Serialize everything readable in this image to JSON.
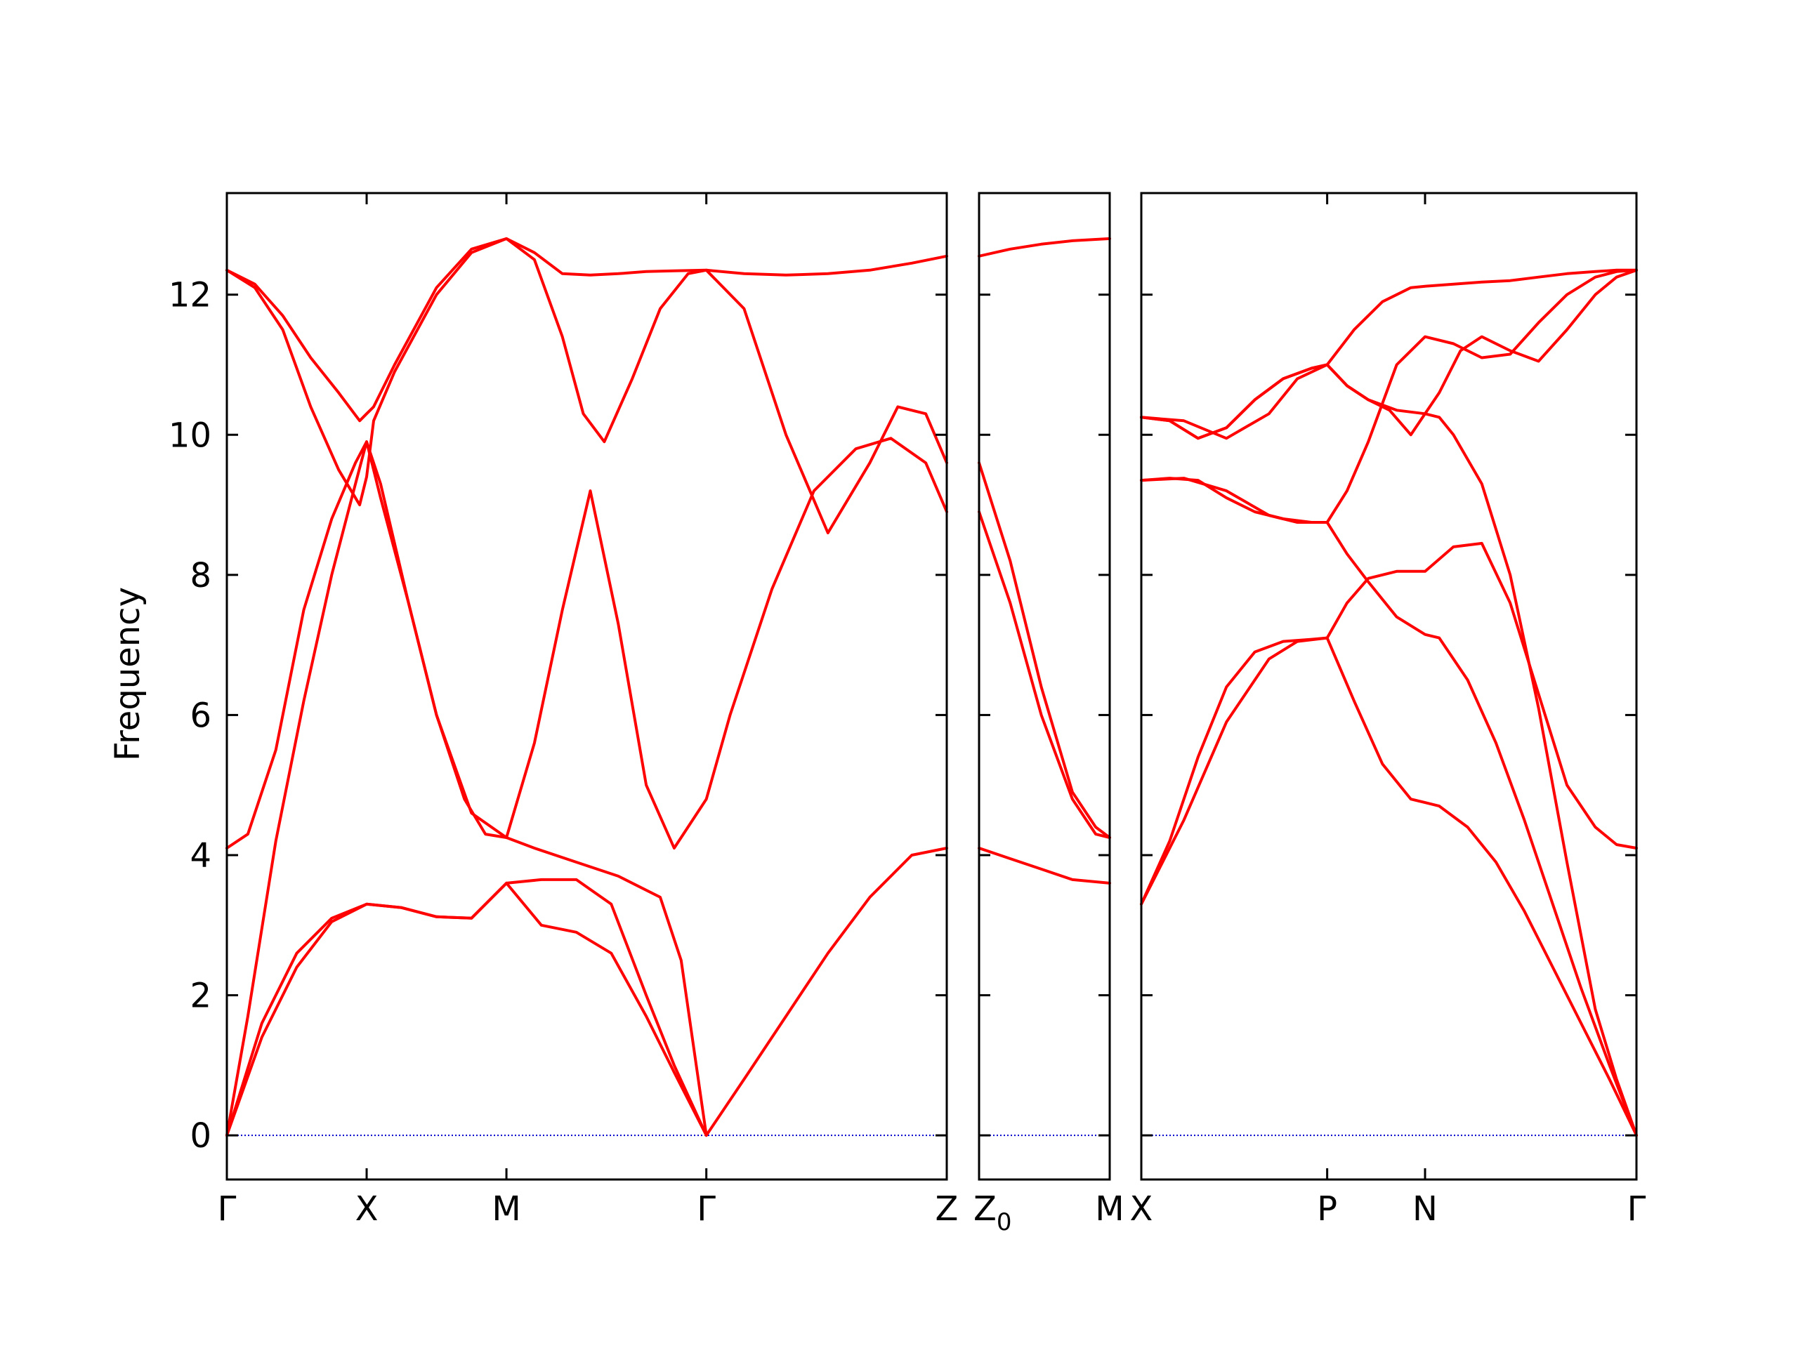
{
  "chart_data": {
    "type": "line",
    "title": "",
    "ylabel": "Frequency",
    "ylim": [
      -0.63,
      13.45
    ],
    "yticks": [
      0,
      2,
      4,
      6,
      8,
      10,
      12
    ],
    "grid": false,
    "line_color": "#ff0000",
    "zero_line_color": "#0000cc",
    "panels": [
      {
        "xlim": [
          0,
          5.15
        ],
        "ticks": [
          {
            "x": 0,
            "label": "Γ"
          },
          {
            "x": 1.0,
            "label": "X"
          },
          {
            "x": 2.0,
            "label": "M"
          },
          {
            "x": 3.43,
            "label": "Γ"
          },
          {
            "x": 5.15,
            "label": "Z"
          }
        ],
        "series": [
          {
            "x": [
              0,
              0.25,
              0.5,
              0.75,
              1.0,
              1.25,
              1.5,
              1.75,
              2.0,
              2.25,
              2.5,
              2.75,
              3.0,
              3.2,
              3.43,
              3.7,
              4.0,
              4.3,
              4.6,
              4.9,
              5.15
            ],
            "y": [
              0,
              1.4,
              2.4,
              3.05,
              3.3,
              3.25,
              3.12,
              3.1,
              3.6,
              3.0,
              2.9,
              2.6,
              1.7,
              0.9,
              0,
              0.8,
              1.7,
              2.6,
              3.4,
              4.0,
              4.1
            ]
          },
          {
            "x": [
              0,
              0.25,
              0.5,
              0.75,
              1.0,
              1.25,
              1.5,
              1.75,
              2.0,
              2.25,
              2.5,
              2.75,
              3.0,
              3.2,
              3.43
            ],
            "y": [
              0,
              1.6,
              2.6,
              3.1,
              3.3,
              3.25,
              3.12,
              3.1,
              3.6,
              3.65,
              3.65,
              3.3,
              2.0,
              1.0,
              0
            ]
          },
          {
            "x": [
              0,
              0.15,
              0.35,
              0.55,
              0.75,
              0.92,
              1.0,
              1.1,
              1.3,
              1.5,
              1.7,
              1.85,
              2.0,
              2.2,
              2.5,
              2.8,
              3.1,
              3.25,
              3.43
            ],
            "y": [
              0,
              1.7,
              4.2,
              6.2,
              8.0,
              9.3,
              9.9,
              9.1,
              7.6,
              6.0,
              4.8,
              4.3,
              4.25,
              4.1,
              3.9,
              3.7,
              3.4,
              2.5,
              0
            ]
          },
          {
            "x": [
              0,
              0.15,
              0.35,
              0.55,
              0.75,
              0.92,
              1.0,
              1.1,
              1.3,
              1.5,
              1.75,
              2.0,
              2.2,
              2.4,
              2.6,
              2.8,
              3.0,
              3.2,
              3.43,
              3.6,
              3.9,
              4.2,
              4.5,
              4.75,
              5.0,
              5.15
            ],
            "y": [
              4.1,
              4.3,
              5.5,
              7.5,
              8.8,
              9.6,
              9.9,
              9.3,
              7.6,
              6.0,
              4.6,
              4.25,
              5.6,
              7.5,
              9.2,
              7.3,
              5.0,
              4.1,
              4.8,
              6.0,
              7.8,
              9.2,
              9.8,
              9.95,
              9.6,
              8.9
            ]
          },
          {
            "x": [
              0,
              0.2,
              0.4,
              0.6,
              0.8,
              0.95,
              1.0,
              1.05,
              1.2,
              1.5,
              1.75,
              2.0,
              2.2,
              2.4,
              2.55,
              2.7,
              2.9,
              3.1,
              3.3,
              3.43,
              3.7,
              4.0,
              4.3,
              4.6,
              4.8,
              5.0,
              5.15
            ],
            "y": [
              12.35,
              12.1,
              11.5,
              10.4,
              9.5,
              9.0,
              9.4,
              10.2,
              10.9,
              12.0,
              12.6,
              12.8,
              12.5,
              11.4,
              10.3,
              9.9,
              10.8,
              11.8,
              12.3,
              12.35,
              11.8,
              10.0,
              8.6,
              9.6,
              10.4,
              10.3,
              9.6
            ]
          },
          {
            "x": [
              0,
              0.2,
              0.4,
              0.6,
              0.8,
              0.95,
              1.0,
              1.05,
              1.2,
              1.5,
              1.75,
              2.0,
              2.2,
              2.4,
              2.6,
              2.8,
              3.0,
              3.2,
              3.43,
              3.7,
              4.0,
              4.3,
              4.6,
              4.9,
              5.15
            ],
            "y": [
              12.35,
              12.15,
              11.7,
              11.1,
              10.6,
              10.2,
              10.3,
              10.4,
              11.0,
              12.1,
              12.65,
              12.8,
              12.6,
              12.3,
              12.28,
              12.3,
              12.33,
              12.34,
              12.35,
              12.3,
              12.28,
              12.3,
              12.35,
              12.45,
              12.55
            ]
          }
        ]
      },
      {
        "xlim": [
          0,
          0.84
        ],
        "ticks": [
          {
            "x": 0,
            "label": "Z",
            "sub": "0"
          },
          {
            "x": 0.84,
            "label": "M"
          }
        ],
        "series": [
          {
            "x": [
              0,
              0.2,
              0.4,
              0.6,
              0.84
            ],
            "y": [
              4.1,
              3.95,
              3.8,
              3.65,
              3.6
            ]
          },
          {
            "x": [
              0,
              0.2,
              0.4,
              0.6,
              0.75,
              0.84
            ],
            "y": [
              8.9,
              7.6,
              6.0,
              4.8,
              4.3,
              4.25
            ]
          },
          {
            "x": [
              0,
              0.2,
              0.4,
              0.6,
              0.75,
              0.84
            ],
            "y": [
              9.6,
              8.2,
              6.4,
              4.9,
              4.4,
              4.25
            ]
          },
          {
            "x": [
              0,
              0.2,
              0.4,
              0.6,
              0.84
            ],
            "y": [
              12.55,
              12.65,
              12.72,
              12.77,
              12.8
            ]
          }
        ]
      },
      {
        "xlim": [
          0,
          3.49
        ],
        "ticks": [
          {
            "x": 0,
            "label": "X"
          },
          {
            "x": 1.31,
            "label": "P"
          },
          {
            "x": 2.0,
            "label": "N"
          },
          {
            "x": 3.49,
            "label": "Γ"
          }
        ],
        "series": [
          {
            "x": [
              0,
              0.2,
              0.4,
              0.6,
              0.8,
              1.0,
              1.2,
              1.31,
              1.5,
              1.7,
              1.9,
              2.0,
              2.1,
              2.3,
              2.5,
              2.7,
              2.9,
              3.1,
              3.3,
              3.49
            ],
            "y": [
              3.3,
              4.2,
              5.4,
              6.4,
              6.9,
              7.05,
              7.08,
              7.1,
              6.2,
              5.3,
              4.8,
              4.75,
              4.7,
              4.4,
              3.9,
              3.2,
              2.4,
              1.6,
              0.8,
              0
            ]
          },
          {
            "x": [
              0,
              0.2,
              0.4,
              0.6,
              0.8,
              1.0,
              1.2,
              1.31,
              1.45,
              1.6,
              1.8,
              2.0,
              2.1,
              2.3,
              2.5,
              2.7,
              2.9,
              3.1,
              3.3,
              3.49
            ],
            "y": [
              9.35,
              9.38,
              9.35,
              9.1,
              8.9,
              8.8,
              8.75,
              8.75,
              8.3,
              7.9,
              7.4,
              7.15,
              7.1,
              6.5,
              5.6,
              4.5,
              3.3,
              2.1,
              1.0,
              0
            ]
          },
          {
            "x": [
              0,
              0.2,
              0.4,
              0.6,
              0.8,
              1.0,
              1.2,
              1.31,
              1.45,
              1.6,
              1.8,
              2.0,
              2.1,
              2.2,
              2.4,
              2.6,
              2.8,
              3.0,
              3.2,
              3.35,
              3.49
            ],
            "y": [
              10.25,
              10.2,
              9.95,
              10.1,
              10.5,
              10.8,
              10.95,
              11.0,
              10.7,
              10.5,
              10.35,
              10.3,
              10.25,
              10.0,
              9.3,
              8.0,
              6.1,
              3.9,
              1.8,
              0.8,
              0
            ]
          },
          {
            "x": [
              0,
              0.2,
              0.4,
              0.6,
              0.8,
              1.0,
              1.2,
              1.31,
              1.45,
              1.6,
              1.75,
              1.9,
              2.0,
              2.1,
              2.25,
              2.4,
              2.6,
              2.8,
              3.0,
              3.2,
              3.35,
              3.49
            ],
            "y": [
              10.25,
              10.2,
              9.95,
              10.1,
              10.5,
              10.8,
              10.95,
              11.0,
              10.7,
              10.5,
              10.35,
              10.0,
              10.3,
              10.6,
              11.2,
              11.4,
              11.2,
              11.05,
              11.5,
              12.0,
              12.25,
              12.35
            ]
          },
          {
            "x": [
              0,
              0.3,
              0.6,
              0.9,
              1.1,
              1.31,
              1.45,
              1.6,
              1.8,
              2.0,
              2.2,
              2.4,
              2.6,
              2.8,
              3.0,
              3.2,
              3.35,
              3.49
            ],
            "y": [
              9.35,
              9.38,
              9.2,
              8.85,
              8.75,
              8.75,
              9.2,
              9.9,
              11.0,
              11.4,
              11.3,
              11.1,
              11.15,
              11.6,
              12.0,
              12.25,
              12.33,
              12.35
            ]
          },
          {
            "x": [
              0,
              0.3,
              0.6,
              0.9,
              1.1,
              1.31,
              1.45,
              1.6,
              1.8,
              2.0,
              2.2,
              2.4,
              2.6,
              2.8,
              3.0,
              3.2,
              3.35,
              3.49
            ],
            "y": [
              3.3,
              4.5,
              5.9,
              6.8,
              7.05,
              7.1,
              7.6,
              7.95,
              8.05,
              8.05,
              8.4,
              8.45,
              7.6,
              6.3,
              5.0,
              4.4,
              4.15,
              4.1
            ]
          },
          {
            "x": [
              0,
              0.3,
              0.6,
              0.9,
              1.1,
              1.31,
              1.5,
              1.7,
              1.9,
              2.0,
              2.2,
              2.4,
              2.6,
              2.8,
              3.0,
              3.2,
              3.35,
              3.49
            ],
            "y": [
              10.25,
              10.2,
              9.95,
              10.3,
              10.8,
              11.0,
              11.5,
              11.9,
              12.1,
              12.12,
              12.15,
              12.18,
              12.2,
              12.25,
              12.3,
              12.33,
              12.35,
              12.35
            ]
          }
        ]
      }
    ]
  }
}
